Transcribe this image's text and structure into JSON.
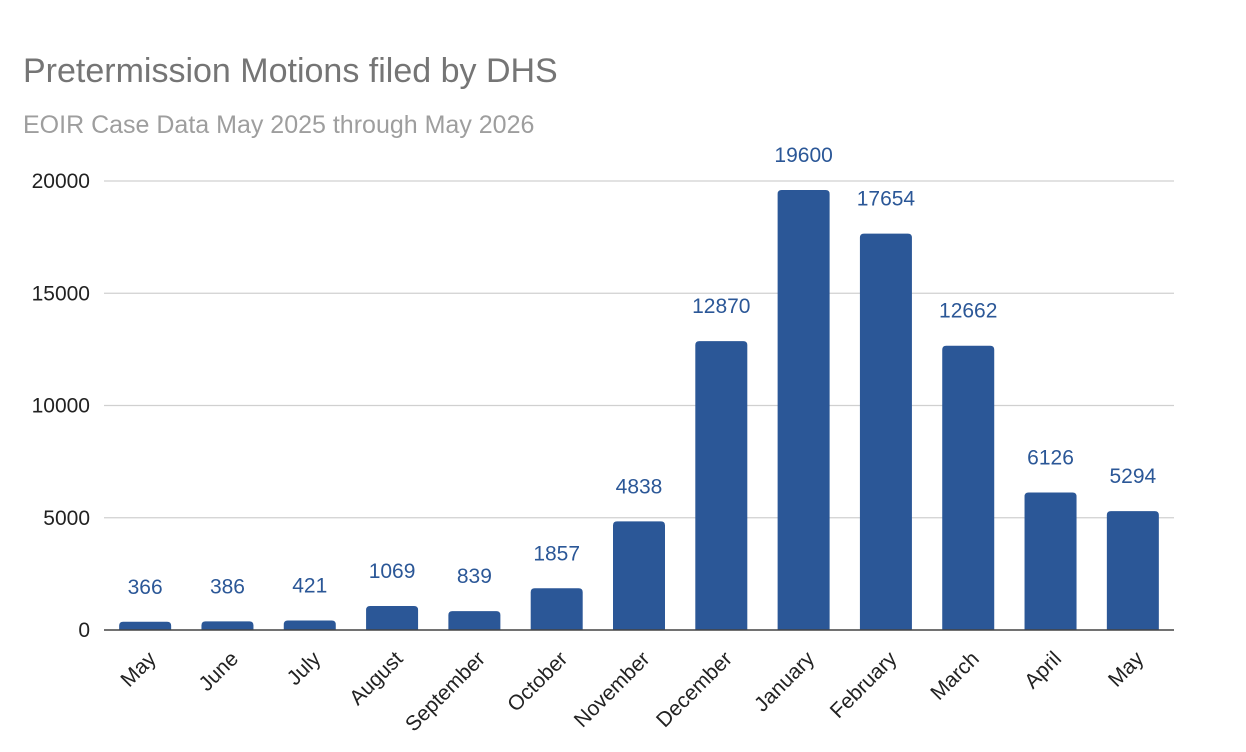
{
  "chart_data": {
    "type": "bar",
    "title": "Pretermission Motions filed by DHS",
    "subtitle": "EOIR Case Data May 2025 through May 2026",
    "xlabel": "",
    "ylabel": "",
    "categories": [
      "May",
      "June",
      "July",
      "August",
      "September",
      "October",
      "November",
      "December",
      "January",
      "February",
      "March",
      "April",
      "May"
    ],
    "values": [
      366,
      386,
      421,
      1069,
      839,
      1857,
      4838,
      12870,
      19600,
      17654,
      12662,
      6126,
      5294
    ],
    "data_labels": [
      "366",
      "386",
      "421",
      "1069",
      "839",
      "1857",
      "4838",
      "12870",
      "19600",
      "17654",
      "12662",
      "6126",
      "5294"
    ],
    "ylim": [
      0,
      20000
    ],
    "yticks": [
      "0",
      "5000",
      "10000",
      "15000",
      "20000"
    ],
    "ytick_values": [
      0,
      5000,
      10000,
      15000,
      20000
    ],
    "grid": true,
    "legend": "none",
    "colors": {
      "bar": "#2b5797",
      "data_label": "#2b5797",
      "grid": "#d0d0d0",
      "axis": "#444444",
      "title": "#757575",
      "subtitle": "#9e9e9e"
    }
  }
}
